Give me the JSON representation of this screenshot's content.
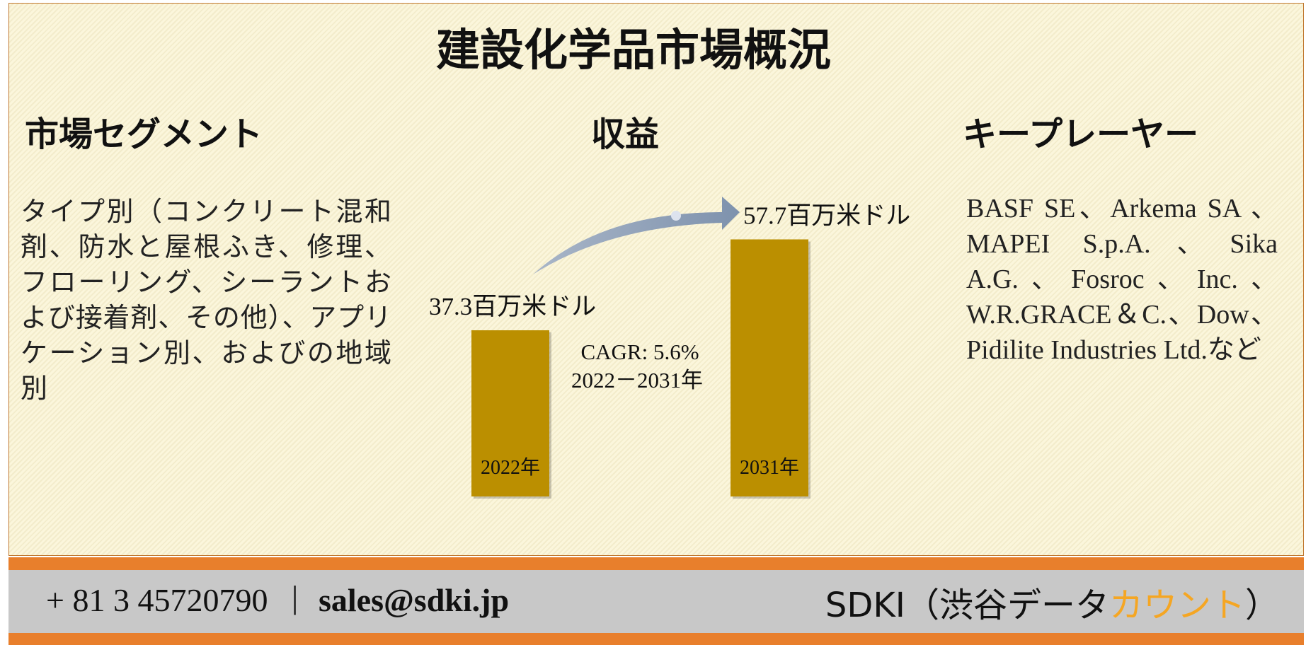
{
  "title": "建設化学品市場概況",
  "segments": {
    "heading": "市場セグメント",
    "text": "タイプ別（コンクリート混和剤、防水と屋根ふき、修理、フローリング、シーラントおよび接着剤、その他）、アプリケーション別、およびの地域別"
  },
  "revenue": {
    "heading": "収益",
    "categories": [
      "2022年",
      "2031年"
    ],
    "values": [
      37.3,
      57.7
    ],
    "value_labels": [
      "37.3百万米ドル",
      "57.7百万米ドル"
    ],
    "color": "#bb8f00",
    "cagr": "CAGR: 5.6%",
    "period": "2022－2031年"
  },
  "players": {
    "heading": "キープレーヤー",
    "text": "BASF SE、Arkema SA 、MAPEI S.p.A.、Sika A.G.、Fosroc、Inc.、W.R.GRACE＆C.、Dow、Pidilite Industries Ltd.など"
  },
  "footer": {
    "phone": "+ 81 3 45720790",
    "email": "sales@sdki.jp",
    "company": "SDKI（渋谷データ",
    "company_accent": "カウント",
    "company_end": "）"
  }
}
